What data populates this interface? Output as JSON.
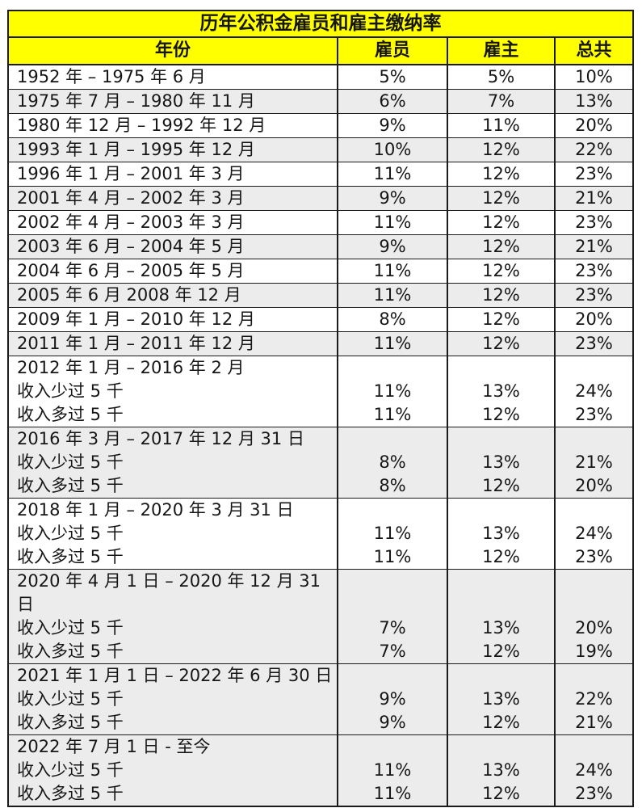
{
  "title": "历年公积金雇员和雇主缴纳率",
  "columns": {
    "period": "年份",
    "employee": "雇员",
    "employer": "雇主",
    "total": "总共"
  },
  "colors": {
    "header_bg": "#ffff00",
    "shaded_row_bg": "#ececec",
    "border": "#1b1b1b",
    "text": "#161616"
  },
  "rows": [
    {
      "period": "1952 年 – 1975 年 6 月",
      "employee": "5%",
      "employer": "5%",
      "total": "10%",
      "shaded": false
    },
    {
      "period": "1975 年 7 月 – 1980 年 11 月",
      "employee": "6%",
      "employer": "7%",
      "total": "13%",
      "shaded": true
    },
    {
      "period": "1980 年 12 月 – 1992 年 12 月",
      "employee": "9%",
      "employer": "11%",
      "total": "20%",
      "shaded": false
    },
    {
      "period": "1993 年 1 月 – 1995 年 12 月",
      "employee": "10%",
      "employer": "12%",
      "total": "22%",
      "shaded": true
    },
    {
      "period": "1996 年 1 月 – 2001 年 3 月",
      "employee": "11%",
      "employer": "12%",
      "total": "23%",
      "shaded": false
    },
    {
      "period": "2001 年 4 月 – 2002 年 3 月",
      "employee": "9%",
      "employer": "12%",
      "total": "21%",
      "shaded": true
    },
    {
      "period": "2002 年 4 月 – 2003 年 3 月",
      "employee": "11%",
      "employer": "12%",
      "total": "23%",
      "shaded": false
    },
    {
      "period": "2003 年 6 月 – 2004 年 5 月",
      "employee": "9%",
      "employer": "12%",
      "total": "21%",
      "shaded": true
    },
    {
      "period": "2004 年 6 月 – 2005 年 5 月",
      "employee": "11%",
      "employer": "12%",
      "total": "23%",
      "shaded": false
    },
    {
      "period": "2005 年 6 月 2008 年 12 月",
      "employee": "11%",
      "employer": "12%",
      "total": "23%",
      "shaded": true
    },
    {
      "period": "2009 年 1 月 – 2010 年 12 月",
      "employee": "8%",
      "employer": "12%",
      "total": "20%",
      "shaded": false
    },
    {
      "period": "2011 年 1 月 – 2011 年 12 月",
      "employee": "11%",
      "employer": "12%",
      "total": "23%",
      "shaded": true
    },
    {
      "period": "2012 年 1 月 – 2016 年 2 月\n收入少过 5 千\n收入多过 5 千",
      "employee": "\n11%\n11%",
      "employer": "\n13%\n12%",
      "total": "\n24%\n23%",
      "shaded": false
    },
    {
      "period": "2016 年 3 月 – 2017 年 12 月 31 日\n收入少过 5 千\n收入多过 5 千",
      "employee": "\n8%\n8%",
      "employer": "\n13%\n12%",
      "total": "\n21%\n20%",
      "shaded": true
    },
    {
      "period": "2018 年 1 月 – 2020 年 3 月 31 日\n收入少过 5 千\n收入多过 5 千",
      "employee": "\n11%\n11%",
      "employer": "\n13%\n12%",
      "total": "\n24%\n23%",
      "shaded": false
    },
    {
      "period": "2020 年 4 月 1 日 – 2020 年 12 月 31\n日\n收入少过 5 千\n收入多过 5 千",
      "employee": "\n\n7%\n7%",
      "employer": "\n\n13%\n12%",
      "total": "\n\n20%\n19%",
      "shaded": true
    },
    {
      "period": "2021 年 1 月 1 日 – 2022 年 6 月 30 日\n收入少过 5 千\n收入多过 5 千",
      "employee": "\n9%\n9%",
      "employer": "\n13%\n12%",
      "total": "\n22%\n21%",
      "shaded": true
    },
    {
      "period": "2022 年 7 月 1 日 - 至今\n收入少过 5 千\n收入多过 5 千",
      "employee": "\n11%\n11%",
      "employer": "\n13%\n12%",
      "total": "\n24%\n23%",
      "shaded": true
    }
  ]
}
